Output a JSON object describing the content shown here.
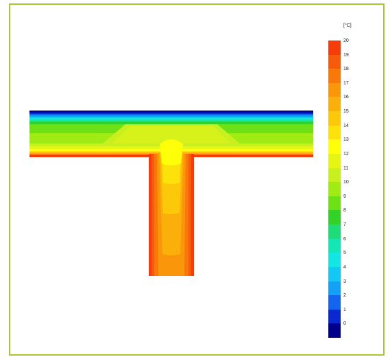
{
  "legend": {
    "unit": "[°C]",
    "levels": [
      {
        "label": "20",
        "color": "#f53c0a"
      },
      {
        "label": "19",
        "color": "#f75a0a"
      },
      {
        "label": "18",
        "color": "#f8780a"
      },
      {
        "label": "17",
        "color": "#fa960a"
      },
      {
        "label": "16",
        "color": "#fbaf0a"
      },
      {
        "label": "15",
        "color": "#fcc80a"
      },
      {
        "label": "14",
        "color": "#fde10a"
      },
      {
        "label": "13",
        "color": "#ffff0a"
      },
      {
        "label": "12",
        "color": "#e6f514"
      },
      {
        "label": "11",
        "color": "#c8f01e"
      },
      {
        "label": "10",
        "color": "#a0eb14"
      },
      {
        "label": "9",
        "color": "#6ee114"
      },
      {
        "label": "8",
        "color": "#32d228"
      },
      {
        "label": "7",
        "color": "#1edc78"
      },
      {
        "label": "6",
        "color": "#14e6b4"
      },
      {
        "label": "5",
        "color": "#14e6e6"
      },
      {
        "label": "4",
        "color": "#14c8f5"
      },
      {
        "label": "3",
        "color": "#14a0f5"
      },
      {
        "label": "2",
        "color": "#1464f0"
      },
      {
        "label": "1",
        "color": "#0a28d2"
      },
      {
        "label": "0",
        "color": "#00008c"
      }
    ]
  },
  "colors": {
    "frame_border": "#a8c832"
  }
}
